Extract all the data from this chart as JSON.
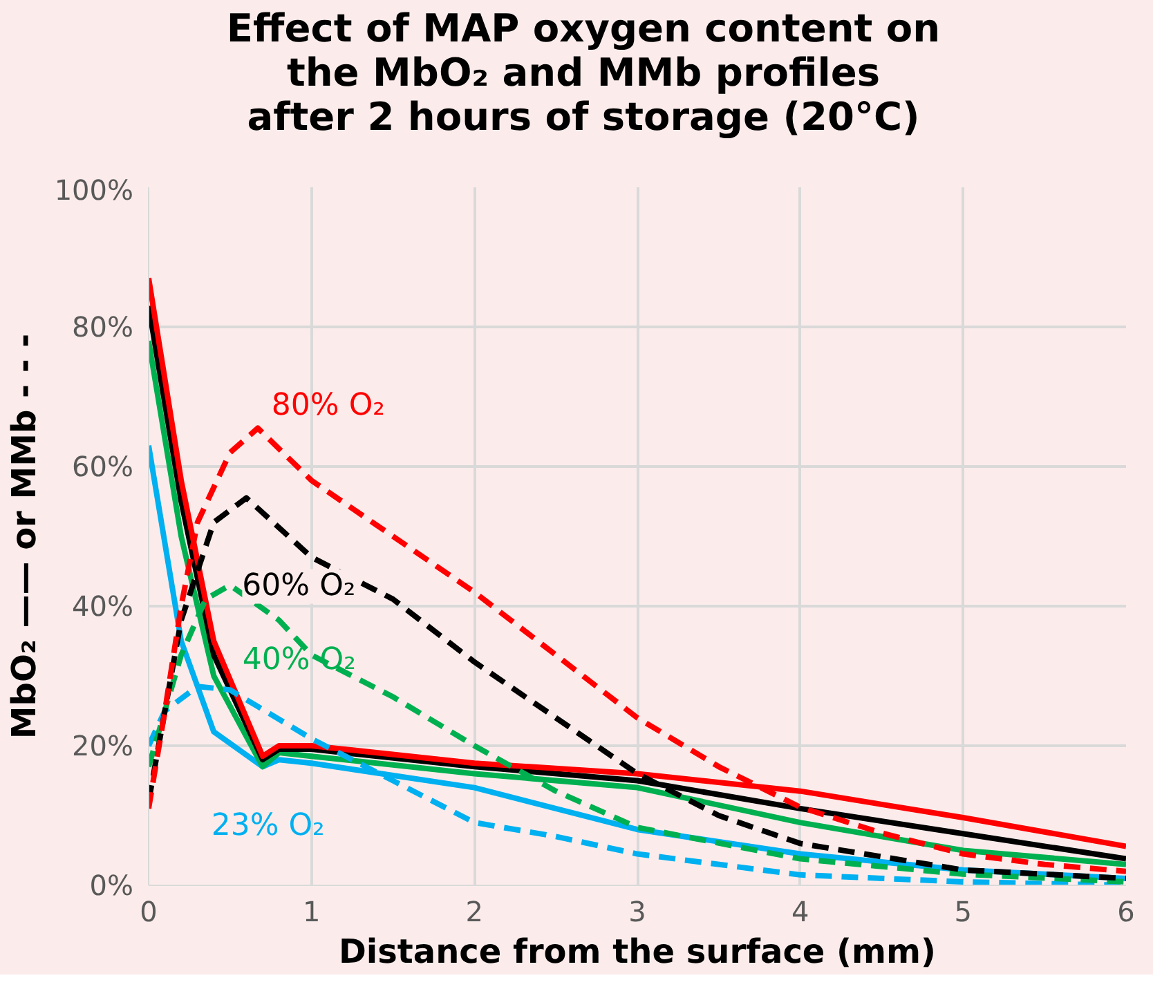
{
  "chart_data": {
    "type": "line",
    "title": "Effect of MAP oxygen content on\nthe MbO₂ and MMb profiles\nafter 2 hours of storage (20°C)",
    "xlabel": "Distance from the surface (mm)",
    "ylabel": "MbO₂ —— or MMb - - -",
    "xlim": [
      0,
      6
    ],
    "ylim": [
      0,
      100
    ],
    "xticks": [
      0,
      1,
      2,
      3,
      4,
      5,
      6
    ],
    "yticks": [
      {
        "value": 0,
        "label": "0%"
      },
      {
        "value": 20,
        "label": "20%"
      },
      {
        "value": 40,
        "label": "40%"
      },
      {
        "value": 60,
        "label": "60%"
      },
      {
        "value": 80,
        "label": "80%"
      },
      {
        "value": 100,
        "label": "100%"
      }
    ],
    "grid": true,
    "legend": false,
    "series": [
      {
        "color": "#00b0f0",
        "line_style": "solid",
        "x": [
          0,
          0.2,
          0.4,
          0.7,
          0.8,
          1,
          2,
          3,
          4,
          5,
          6
        ],
        "values": [
          63,
          35,
          22,
          17,
          18,
          17.5,
          14,
          8,
          4.5,
          2.2,
          1
        ]
      },
      {
        "color": "#00b050",
        "line_style": "solid",
        "x": [
          0,
          0.2,
          0.4,
          0.7,
          0.8,
          1,
          2,
          3,
          4,
          5,
          6
        ],
        "values": [
          78,
          50,
          30,
          17,
          19,
          18.5,
          16,
          14,
          9,
          5,
          3
        ]
      },
      {
        "color": "#000000",
        "line_style": "solid",
        "x": [
          0,
          0.2,
          0.4,
          0.7,
          0.8,
          1,
          2,
          3,
          4,
          5,
          6
        ],
        "values": [
          83,
          55,
          33,
          18,
          19.5,
          19.5,
          17,
          15,
          11,
          7.4,
          3.8
        ]
      },
      {
        "color": "#ff0000",
        "line_style": "solid",
        "x": [
          0,
          0.2,
          0.4,
          0.7,
          0.8,
          1,
          2,
          3,
          4,
          5,
          6
        ],
        "values": [
          87,
          58,
          35,
          18.5,
          20,
          20,
          17.5,
          16,
          13.5,
          9.7,
          5.6
        ]
      },
      {
        "name": "23% O₂",
        "color": "#00b0f0",
        "line_style": "dashed",
        "x": [
          0,
          0.1,
          0.3,
          0.5,
          1,
          1.5,
          2,
          2.5,
          3,
          4,
          5,
          6
        ],
        "values": [
          20,
          25,
          28.5,
          28,
          21,
          15,
          9,
          7,
          4.5,
          1.5,
          0.5,
          0
        ]
      },
      {
        "name": "40% O₂",
        "color": "#00b050",
        "line_style": "dashed",
        "x": [
          0,
          0.2,
          0.35,
          0.5,
          0.8,
          1,
          1.5,
          2,
          2.5,
          3,
          4,
          5,
          6
        ],
        "values": [
          17,
          33,
          41,
          43,
          38,
          33,
          27,
          20,
          13.5,
          8.3,
          3.8,
          1.6,
          0.5
        ]
      },
      {
        "name": "60% O₂",
        "color": "#000000",
        "line_style": "dashed",
        "x": [
          0,
          0.2,
          0.4,
          0.6,
          1,
          1.5,
          2,
          2.5,
          3,
          3.5,
          4,
          5,
          6
        ],
        "values": [
          12,
          38,
          52,
          55.5,
          47,
          41,
          32,
          24,
          16,
          10,
          6,
          2.2,
          1
        ]
      },
      {
        "name": "80% O₂",
        "color": "#ff0000",
        "line_style": "dashed",
        "x": [
          0,
          0.1,
          0.2,
          0.3,
          0.5,
          0.67,
          1,
          1.5,
          2,
          2.5,
          3,
          3.5,
          4,
          4.5,
          5,
          5.5,
          6
        ],
        "values": [
          11,
          25,
          40,
          52,
          62,
          65.5,
          58,
          50,
          42,
          33,
          24,
          17,
          11.2,
          7.5,
          4.5,
          3,
          2
        ]
      }
    ]
  }
}
